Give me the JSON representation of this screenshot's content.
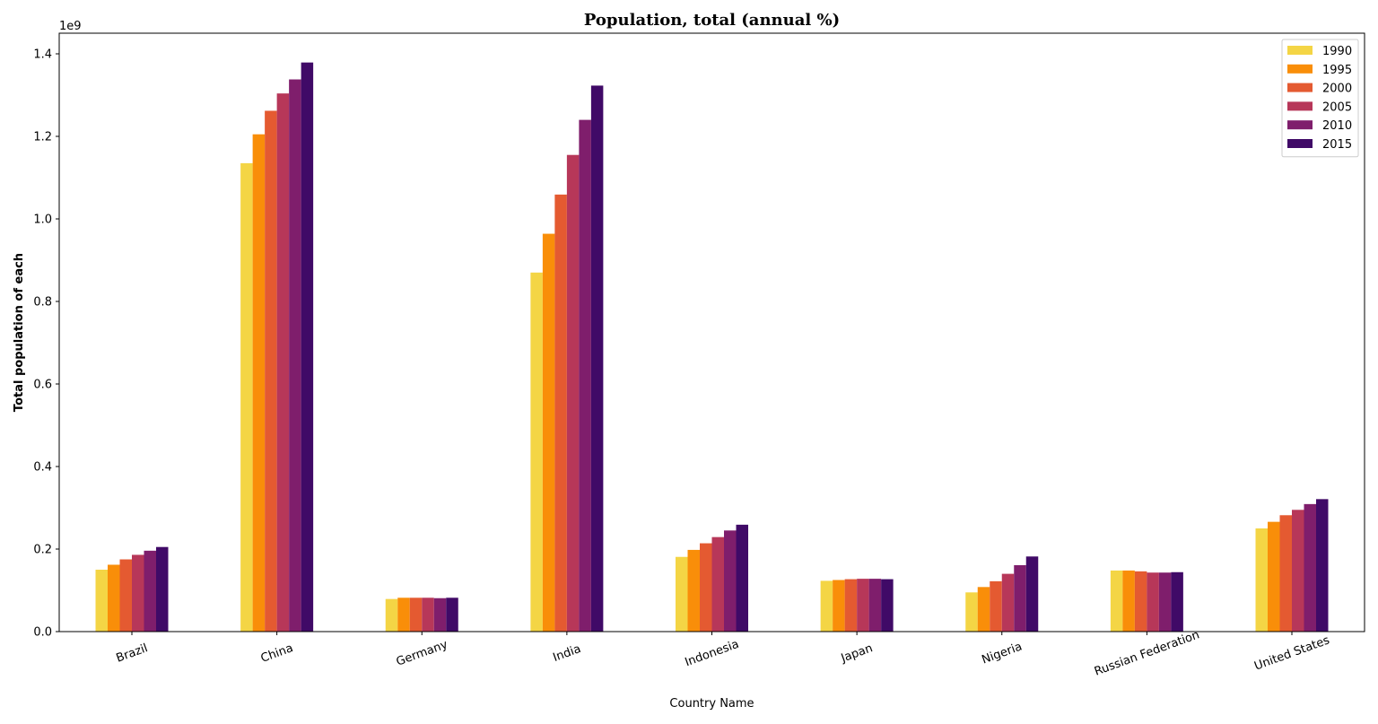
{
  "chart_data": {
    "type": "bar",
    "title": "Population, total (annual %)",
    "xlabel": "Country Name",
    "ylabel": "Total population of each",
    "y_offset_label": "1e9",
    "ylim": [
      0,
      1.45
    ],
    "y_scale": 1000000000,
    "yticks": [
      0.0,
      0.2,
      0.4,
      0.6,
      0.8,
      1.0,
      1.2,
      1.4
    ],
    "ytick_labels": [
      "0.0",
      "0.2",
      "0.4",
      "0.6",
      "0.8",
      "1.0",
      "1.2",
      "1.4"
    ],
    "grid": false,
    "legend_position": "top-right",
    "categories": [
      "Brazil",
      "China",
      "Germany",
      "India",
      "Indonesia",
      "Japan",
      "Nigeria",
      "Russian Federation",
      "United States"
    ],
    "series": [
      {
        "name": "1990",
        "color": "#f4d545",
        "values": [
          0.15,
          1.135,
          0.079,
          0.87,
          0.181,
          0.123,
          0.095,
          0.148,
          0.25
        ]
      },
      {
        "name": "1995",
        "color": "#f98e09",
        "values": [
          0.162,
          1.205,
          0.082,
          0.964,
          0.198,
          0.125,
          0.108,
          0.148,
          0.266
        ]
      },
      {
        "name": "2000",
        "color": "#e45a31",
        "values": [
          0.175,
          1.262,
          0.082,
          1.059,
          0.214,
          0.127,
          0.122,
          0.146,
          0.282
        ]
      },
      {
        "name": "2005",
        "color": "#b73759",
        "values": [
          0.186,
          1.304,
          0.082,
          1.155,
          0.229,
          0.128,
          0.14,
          0.143,
          0.295
        ]
      },
      {
        "name": "2010",
        "color": "#7f1e6c",
        "values": [
          0.196,
          1.338,
          0.081,
          1.24,
          0.245,
          0.128,
          0.161,
          0.143,
          0.309
        ]
      },
      {
        "name": "2015",
        "color": "#400a67",
        "values": [
          0.205,
          1.379,
          0.082,
          1.323,
          0.259,
          0.127,
          0.182,
          0.144,
          0.321
        ]
      }
    ]
  }
}
